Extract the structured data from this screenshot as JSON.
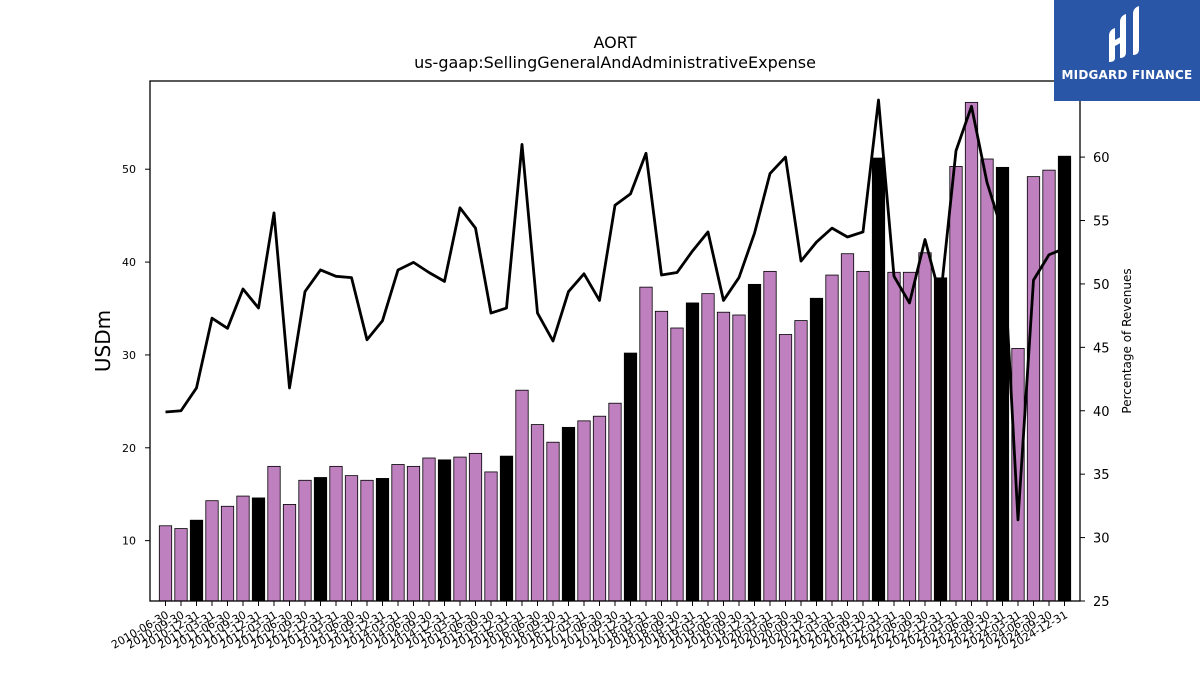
{
  "chart_data": {
    "type": "bar",
    "title": "AORT",
    "subtitle": "us-gaap:SellingGeneralAndAdministrativeExpense",
    "ylabel": "USDm",
    "y2label": "Percentage of Revenues",
    "ylim": [
      3.5,
      59.5
    ],
    "y2lim": [
      25,
      66
    ],
    "yticks": [
      10,
      20,
      30,
      40,
      50
    ],
    "y2ticks": [
      25,
      30,
      35,
      40,
      45,
      50,
      55,
      60
    ],
    "colors": {
      "quarter": "#bf80bf",
      "annual": "#000000",
      "line": "#000000"
    },
    "categories": [
      "2010-06-30",
      "2010-09-30",
      "2010-12-31",
      "2011-03-31",
      "2011-06-30",
      "2011-09-30",
      "2011-12-31",
      "2012-03-31",
      "2012-06-30",
      "2012-09-30",
      "2012-12-31",
      "2013-03-31",
      "2013-06-30",
      "2013-09-30",
      "2013-12-31",
      "2014-03-31",
      "2014-06-30",
      "2014-09-30",
      "2014-12-31",
      "2015-03-31",
      "2015-06-30",
      "2015-09-30",
      "2015-12-31",
      "2016-03-31",
      "2016-06-30",
      "2016-09-30",
      "2016-12-31",
      "2017-03-31",
      "2017-06-30",
      "2017-09-30",
      "2017-12-31",
      "2018-03-31",
      "2018-06-30",
      "2018-09-30",
      "2018-12-31",
      "2019-03-31",
      "2019-06-30",
      "2019-09-30",
      "2019-12-31",
      "2020-03-31",
      "2020-06-30",
      "2020-09-30",
      "2020-12-31",
      "2021-03-31",
      "2021-06-30",
      "2021-09-30",
      "2021-12-31",
      "2022-03-31",
      "2022-06-30",
      "2022-09-30",
      "2022-12-31",
      "2023-03-31",
      "2023-06-30",
      "2023-09-30",
      "2023-12-31",
      "2024-03-31",
      "2024-06-30",
      "2024-09-30",
      "2024-12-31"
    ],
    "values": [
      11.6,
      11.3,
      12.2,
      14.3,
      13.7,
      14.8,
      14.6,
      18.0,
      13.9,
      16.5,
      16.8,
      18.0,
      17.0,
      16.5,
      16.7,
      18.2,
      18.0,
      18.9,
      18.7,
      19.0,
      19.4,
      17.4,
      19.1,
      26.2,
      22.5,
      20.6,
      22.2,
      22.9,
      23.4,
      24.8,
      30.2,
      37.3,
      34.7,
      32.9,
      35.6,
      36.6,
      34.6,
      34.3,
      37.6,
      39.0,
      32.2,
      33.7,
      36.1,
      38.6,
      40.9,
      39.0,
      51.2,
      38.9,
      38.9,
      41.0,
      38.3,
      50.3,
      57.2,
      51.1,
      50.2,
      30.7,
      49.2,
      49.9,
      51.4
    ],
    "annual": [
      false,
      false,
      true,
      false,
      false,
      false,
      true,
      false,
      false,
      false,
      true,
      false,
      false,
      false,
      true,
      false,
      false,
      false,
      true,
      false,
      false,
      false,
      true,
      false,
      false,
      false,
      true,
      false,
      false,
      false,
      true,
      false,
      false,
      false,
      true,
      false,
      false,
      false,
      true,
      false,
      false,
      false,
      true,
      false,
      false,
      false,
      true,
      false,
      false,
      false,
      true,
      false,
      false,
      false,
      true,
      false,
      false,
      false,
      true
    ],
    "pct_of_revenue": [
      39.9,
      40.0,
      41.8,
      47.3,
      46.5,
      49.6,
      48.1,
      55.6,
      41.8,
      49.4,
      51.1,
      50.6,
      50.5,
      45.6,
      47.1,
      51.1,
      51.7,
      50.9,
      50.2,
      56.0,
      54.4,
      47.7,
      48.1,
      61.0,
      47.7,
      45.5,
      49.4,
      50.8,
      48.7,
      56.2,
      57.1,
      60.3,
      50.7,
      50.9,
      52.6,
      54.1,
      48.7,
      50.5,
      54.0,
      58.7,
      60.0,
      51.8,
      53.3,
      54.4,
      53.7,
      54.1,
      64.5,
      50.6,
      48.5,
      53.5,
      48.9,
      60.5,
      64.0,
      58.0,
      54.1,
      31.4,
      50.3,
      52.3,
      52.8
    ]
  },
  "logo": {
    "text": "MIDGARD FINANCE"
  }
}
